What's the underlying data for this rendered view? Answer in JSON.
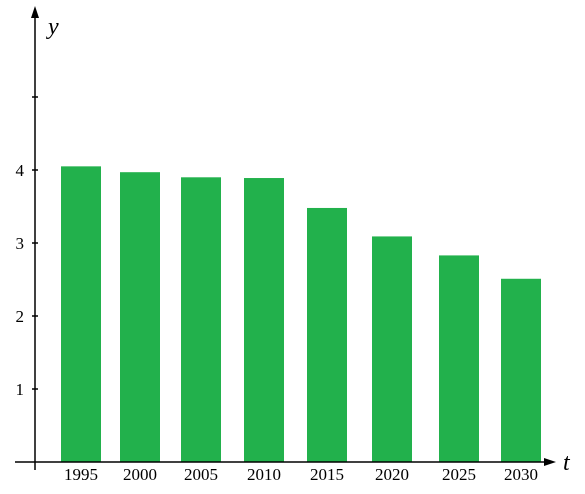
{
  "chart_data": {
    "type": "bar",
    "title": "",
    "xlabel": "t",
    "ylabel": "y",
    "categories": [
      "1995",
      "2000",
      "2005",
      "2010",
      "2015",
      "2020",
      "2025",
      "2030"
    ],
    "values": [
      4.05,
      3.97,
      3.9,
      3.89,
      3.48,
      3.09,
      2.83,
      2.51
    ],
    "y_ticks": [
      "1",
      "2",
      "3",
      "4"
    ],
    "ylim": [
      0,
      6
    ],
    "grid": false,
    "bar_color": "#22b14c",
    "axis_color": "#000000"
  }
}
